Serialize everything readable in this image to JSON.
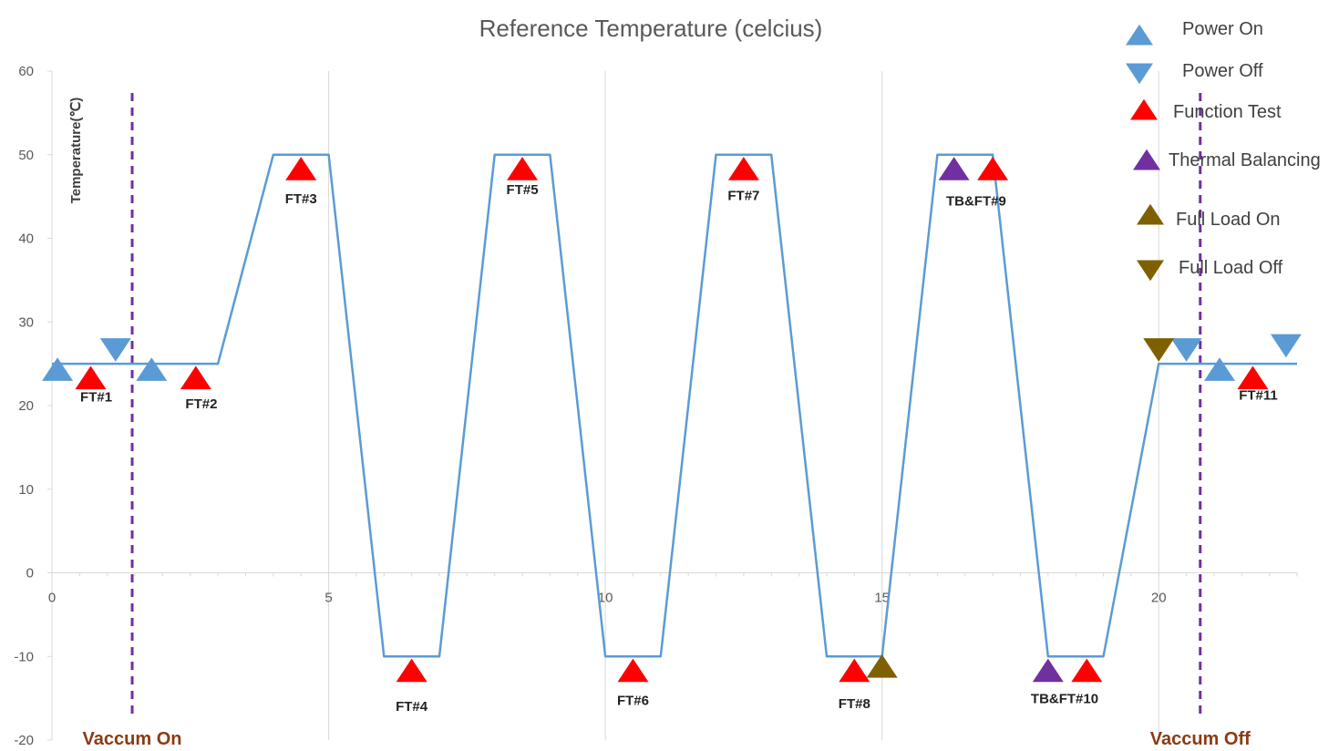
{
  "chart_data": {
    "type": "line",
    "title": "Reference Temperature (celcius)",
    "ylabel": "Temperature(℃)",
    "xlabel": "",
    "xlim": [
      0,
      22.5
    ],
    "ylim": [
      -20,
      60
    ],
    "x_ticks": [
      0,
      5,
      10,
      15,
      20
    ],
    "y_ticks": [
      -20,
      -10,
      0,
      10,
      20,
      30,
      40,
      50,
      60
    ],
    "grid": "vertical",
    "legend_position": "top-right",
    "series": [
      {
        "color": "#5b9bd5",
        "points": [
          [
            0,
            25
          ],
          [
            3,
            25
          ],
          [
            4,
            50
          ],
          [
            5,
            50
          ],
          [
            6,
            -10
          ],
          [
            7,
            -10
          ],
          [
            8,
            50
          ],
          [
            9,
            50
          ],
          [
            10,
            -10
          ],
          [
            11,
            -10
          ],
          [
            12,
            50
          ],
          [
            13,
            50
          ],
          [
            14,
            -10
          ],
          [
            15,
            -10
          ],
          [
            16,
            50
          ],
          [
            17,
            50
          ],
          [
            18,
            -10
          ],
          [
            19,
            -10
          ],
          [
            20,
            25
          ],
          [
            22.5,
            25
          ]
        ]
      }
    ],
    "legend": [
      {
        "label": "Power On",
        "symbol": "up",
        "color": "#5b9bd5"
      },
      {
        "label": "Power Off",
        "symbol": "down",
        "color": "#5b9bd5"
      },
      {
        "label": "Function Test",
        "symbol": "up",
        "color": "#ff0000"
      },
      {
        "label": "Thermal Balancing",
        "symbol": "up",
        "color": "#7030a0"
      },
      {
        "label": "Full Load On",
        "symbol": "up",
        "color": "#7f6000"
      },
      {
        "label": "Full Load Off",
        "symbol": "down",
        "color": "#7f6000"
      }
    ],
    "markers": [
      {
        "type": "power-on",
        "symbol": "up",
        "color": "#5b9bd5",
        "x": 0.1,
        "y": 24
      },
      {
        "type": "power-off",
        "symbol": "down",
        "color": "#5b9bd5",
        "x": 1.15,
        "y": 27
      },
      {
        "type": "power-on",
        "symbol": "up",
        "color": "#5b9bd5",
        "x": 1.8,
        "y": 24
      },
      {
        "type": "power-on",
        "symbol": "up",
        "color": "#5b9bd5",
        "x": 21.1,
        "y": 24
      },
      {
        "type": "power-off",
        "symbol": "down",
        "color": "#5b9bd5",
        "x": 20.5,
        "y": 27
      },
      {
        "type": "power-off",
        "symbol": "down",
        "color": "#5b9bd5",
        "x": 22.3,
        "y": 27.5
      },
      {
        "type": "function-test",
        "symbol": "up",
        "color": "#ff0000",
        "x": 0.7,
        "y": 23
      },
      {
        "type": "function-test",
        "symbol": "up",
        "color": "#ff0000",
        "x": 2.6,
        "y": 23
      },
      {
        "type": "function-test",
        "symbol": "up",
        "color": "#ff0000",
        "x": 4.5,
        "y": 48
      },
      {
        "type": "function-test",
        "symbol": "up",
        "color": "#ff0000",
        "x": 6.5,
        "y": -12
      },
      {
        "type": "function-test",
        "symbol": "up",
        "color": "#ff0000",
        "x": 8.5,
        "y": 48
      },
      {
        "type": "function-test",
        "symbol": "up",
        "color": "#ff0000",
        "x": 10.5,
        "y": -12
      },
      {
        "type": "function-test",
        "symbol": "up",
        "color": "#ff0000",
        "x": 12.5,
        "y": 48
      },
      {
        "type": "function-test",
        "symbol": "up",
        "color": "#ff0000",
        "x": 14.5,
        "y": -12
      },
      {
        "type": "function-test",
        "symbol": "up",
        "color": "#ff0000",
        "x": 17.0,
        "y": 48
      },
      {
        "type": "function-test",
        "symbol": "up",
        "color": "#ff0000",
        "x": 18.7,
        "y": -12
      },
      {
        "type": "function-test",
        "symbol": "up",
        "color": "#ff0000",
        "x": 21.7,
        "y": 23
      },
      {
        "type": "thermal-balancing",
        "symbol": "up",
        "color": "#7030a0",
        "x": 16.3,
        "y": 48
      },
      {
        "type": "thermal-balancing",
        "symbol": "up",
        "color": "#7030a0",
        "x": 18.0,
        "y": -12
      },
      {
        "type": "full-load-on",
        "symbol": "up",
        "color": "#7f6000",
        "x": 15.0,
        "y": -11.5
      },
      {
        "type": "full-load-off",
        "symbol": "down",
        "color": "#7f6000",
        "x": 20.0,
        "y": 27
      }
    ],
    "annotations": [
      {
        "text": "FT#1",
        "x": 0.8,
        "y": 20.5
      },
      {
        "text": "FT#2",
        "x": 2.7,
        "y": 19.7
      },
      {
        "text": "FT#3",
        "x": 4.5,
        "y": 44.2
      },
      {
        "text": "FT#4",
        "x": 6.5,
        "y": -16.5
      },
      {
        "text": "FT#5",
        "x": 8.5,
        "y": 45.3
      },
      {
        "text": "FT#6",
        "x": 10.5,
        "y": -15.8
      },
      {
        "text": "FT#7",
        "x": 12.5,
        "y": 44.6
      },
      {
        "text": "FT#8",
        "x": 14.5,
        "y": -16.2
      },
      {
        "text": "TB&FT#9",
        "x": 16.7,
        "y": 43.9
      },
      {
        "text": "TB&FT#10",
        "x": 18.3,
        "y": -15.6
      },
      {
        "text": "FT#11",
        "x": 21.8,
        "y": 20.7
      }
    ],
    "vertical_lines": [
      {
        "x": 1.45,
        "label": "Vaccum On",
        "color": "#7030a0"
      },
      {
        "x": 20.75,
        "label": "Vaccum Off",
        "color": "#7030a0"
      }
    ]
  }
}
